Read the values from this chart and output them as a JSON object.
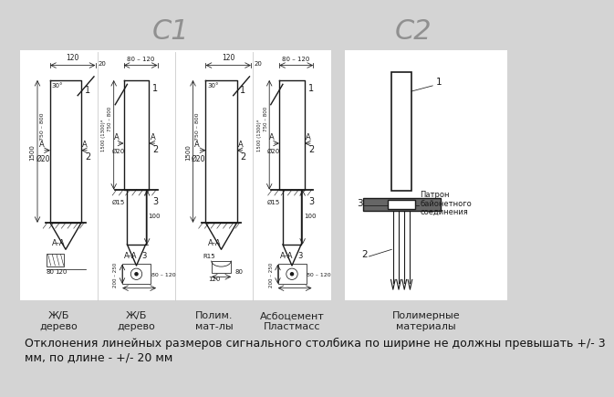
{
  "title_c1": "С1",
  "title_c2": "С2",
  "background_color": "#d4d4d4",
  "title_color": "#909090",
  "title_fontsize": 22,
  "footer_text": "Отклонения линейных размеров сигнального столбика по ширине не должны превышать +/- 3\nмм, по длине - +/- 20 мм",
  "footer_fontsize": 9,
  "labels_c1": [
    "Ж/Б\nдерево",
    "Ж/Б\nдерево",
    "Полим.\nмат-лы",
    "Асбоцемент\nПластмасс"
  ],
  "labels_c2": [
    "Полимерные\nматериалы"
  ],
  "panel_color": "#ffffff",
  "drawing_color": "#1a1a1a"
}
